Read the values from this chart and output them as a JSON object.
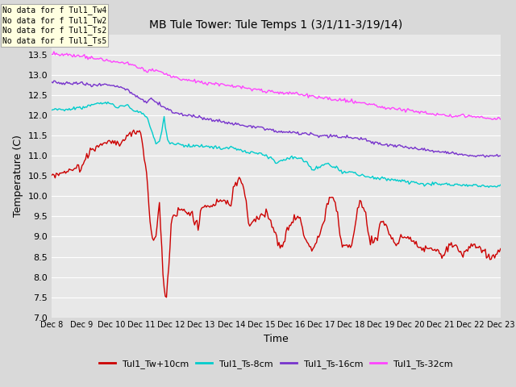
{
  "title": "MB Tule Tower: Tule Temps 1 (3/1/11-3/19/14)",
  "xlabel": "Time",
  "ylabel": "Temperature (C)",
  "ylim": [
    7.0,
    14.0
  ],
  "yticks": [
    7.0,
    7.5,
    8.0,
    8.5,
    9.0,
    9.5,
    10.0,
    10.5,
    11.0,
    11.5,
    12.0,
    12.5,
    13.0,
    13.5
  ],
  "xtick_labels": [
    "Dec 8",
    "Dec 9",
    "Dec 10",
    "Dec 11",
    "Dec 12",
    "Dec 13",
    "Dec 14",
    "Dec 15",
    "Dec 16",
    "Dec 17",
    "Dec 18",
    "Dec 19",
    "Dec 20",
    "Dec 21",
    "Dec 22",
    "Dec 23"
  ],
  "colors": {
    "Tul1_Tw+10cm": "#cc0000",
    "Tul1_Ts-8cm": "#00cccc",
    "Tul1_Ts-16cm": "#7733cc",
    "Tul1_Ts-32cm": "#ff44ff"
  },
  "legend_labels": [
    "Tul1_Tw+10cm",
    "Tul1_Ts-8cm",
    "Tul1_Ts-16cm",
    "Tul1_Ts-32cm"
  ],
  "nodata_lines": [
    "No data for f Tul1_Tw4",
    "No data for f Tul1_Tw2",
    "No data for f Tul1_Ts2",
    "No data for f Tul1_Ts5"
  ],
  "background_color": "#e8e8e8",
  "grid_color": "#ffffff",
  "figsize": [
    6.4,
    4.8
  ],
  "dpi": 100
}
